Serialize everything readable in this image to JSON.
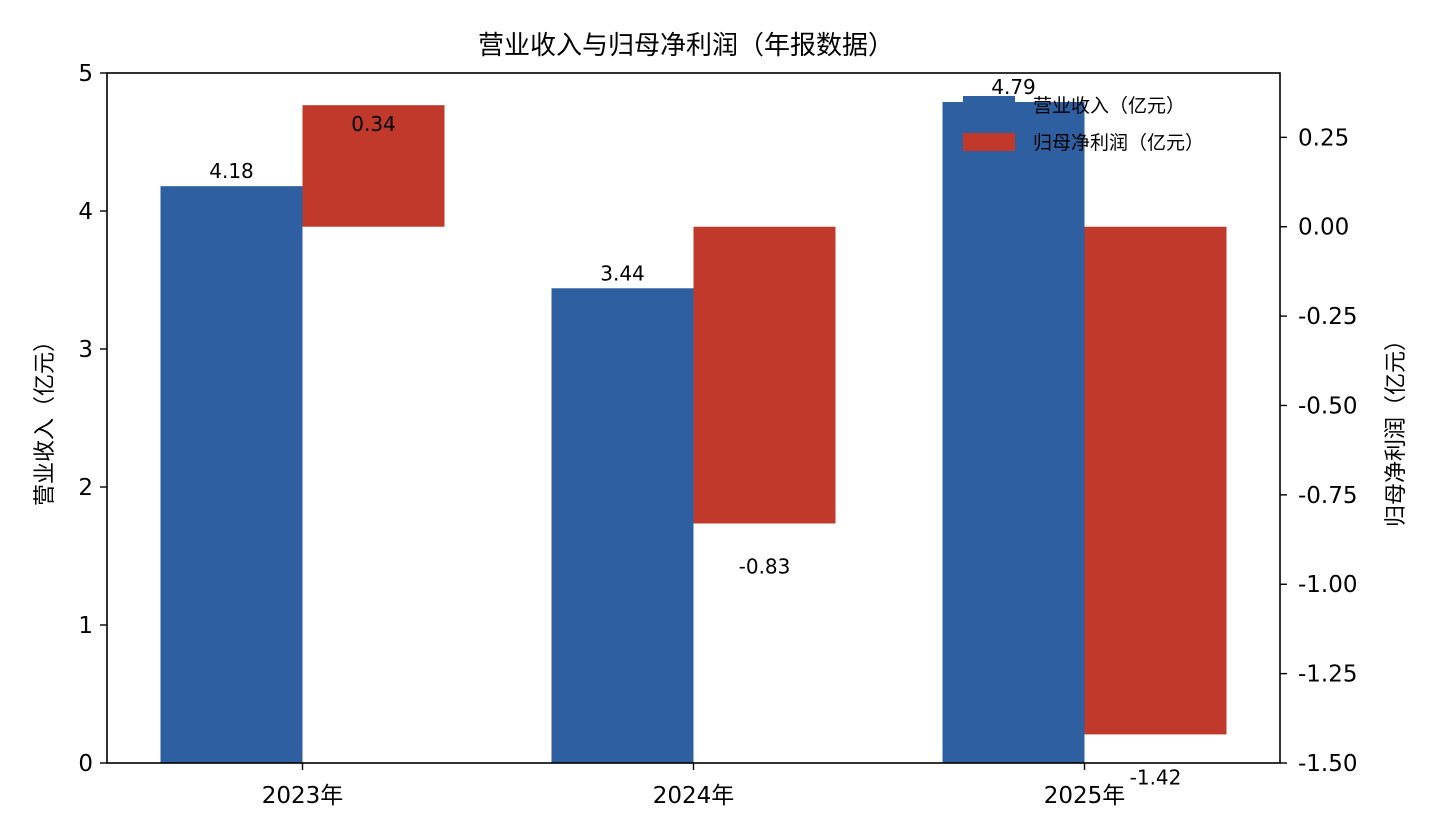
{
  "chart_data": {
    "type": "bar",
    "title": "营业收入与归母净利润（年报数据）",
    "categories": [
      "2023年",
      "2024年",
      "2025年"
    ],
    "series": [
      {
        "name": "营业收入（亿元）",
        "axis": "left",
        "color": "#2e5fa1",
        "values": [
          4.18,
          3.44,
          4.79
        ]
      },
      {
        "name": "归母净利润（亿元）",
        "axis": "right",
        "color": "#c0392b",
        "values": [
          0.34,
          -0.83,
          -1.42
        ]
      }
    ],
    "ylabel": "营业收入（亿元）",
    "ylabel_right": "归母净利润（亿元）",
    "ylim": [
      0,
      5
    ],
    "ylim_right": [
      -1.5,
      0.43
    ],
    "yticks": [
      "0",
      "1",
      "2",
      "3",
      "4",
      "5"
    ],
    "yticks_right": [
      "0.25",
      "0.00",
      "-0.25",
      "-0.50",
      "-0.75",
      "-1.00",
      "-1.25",
      "-1.50"
    ],
    "data_labels_left": [
      "4.18",
      "3.44",
      "4.79"
    ],
    "data_labels_right": [
      "0.34",
      "-0.83",
      "-1.42"
    ],
    "legend_position": "upper-right",
    "grid": false
  }
}
